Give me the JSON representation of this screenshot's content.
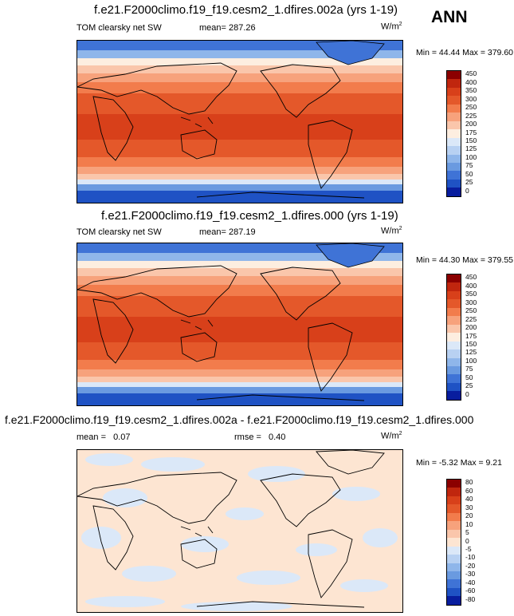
{
  "season": "ANN",
  "panels": [
    {
      "title": "f.e21.F2000climo.f19_f19.cesm2_1.dfires.002a (yrs 1-19)",
      "left_label": "TOM clearsky net SW",
      "stat_label": "mean=",
      "stat_value": "287.26",
      "units": "W/m",
      "units_exp": "2",
      "minmax": "Min =  44.44 Max = 379.60"
    },
    {
      "title": "f.e21.F2000climo.f19_f19.cesm2_1.dfires.000 (yrs 1-19)",
      "left_label": "TOM clearsky net SW",
      "stat_label": "mean=",
      "stat_value": "287.19",
      "units": "W/m",
      "units_exp": "2",
      "minmax": "Min =  44.30 Max = 379.55"
    },
    {
      "title": "f.e21.F2000climo.f19_f19.cesm2_1.dfires.002a - f.e21.F2000climo.f19_f19.cesm2_1.dfires.000",
      "mean_label": "mean =",
      "mean_value": "0.07",
      "rmse_label": "rmse =",
      "rmse_value": "0.40",
      "units": "W/m",
      "units_exp": "2",
      "minmax": "Min =  -5.32 Max =   9.21"
    }
  ],
  "chart_data": [
    {
      "type": "heatmap",
      "colorbar_levels": [
        "450",
        "400",
        "350",
        "300",
        "250",
        "225",
        "200",
        "175",
        "150",
        "125",
        "100",
        "75",
        "50",
        "25",
        "0"
      ],
      "colorbar_colors": [
        "#8b0000",
        "#c0260e",
        "#d8401a",
        "#e4582a",
        "#f27c4c",
        "#f7a27c",
        "#fac6ab",
        "#fdeee0",
        "#dbe8f8",
        "#b8d1f2",
        "#8fb6ea",
        "#6a9ae0",
        "#3f73d6",
        "#1f52c4",
        "#081d9e"
      ],
      "field": "TOM clearsky net SW",
      "mean": 287.26,
      "min": 44.44,
      "max": 379.6
    },
    {
      "type": "heatmap",
      "colorbar_levels": [
        "450",
        "400",
        "350",
        "300",
        "250",
        "225",
        "200",
        "175",
        "150",
        "125",
        "100",
        "75",
        "50",
        "25",
        "0"
      ],
      "colorbar_colors": [
        "#8b0000",
        "#c0260e",
        "#d8401a",
        "#e4582a",
        "#f27c4c",
        "#f7a27c",
        "#fac6ab",
        "#fdeee0",
        "#dbe8f8",
        "#b8d1f2",
        "#8fb6ea",
        "#6a9ae0",
        "#3f73d6",
        "#1f52c4",
        "#081d9e"
      ],
      "field": "TOM clearsky net SW",
      "mean": 287.19,
      "min": 44.3,
      "max": 379.55
    },
    {
      "type": "heatmap",
      "colorbar_levels": [
        "80",
        "60",
        "40",
        "30",
        "20",
        "10",
        "5",
        "0",
        "-5",
        "-10",
        "-20",
        "-30",
        "-40",
        "-60",
        "-80"
      ],
      "colorbar_colors": [
        "#8b0000",
        "#c0260e",
        "#d8401a",
        "#e4582a",
        "#f27c4c",
        "#f7a27c",
        "#fac6ab",
        "#fde5d2",
        "#dbe8f8",
        "#b8d1f2",
        "#8fb6ea",
        "#6a9ae0",
        "#3f73d6",
        "#1f52c4",
        "#081d9e"
      ],
      "mean": 0.07,
      "rmse": 0.4,
      "min": -5.32,
      "max": 9.21
    }
  ]
}
